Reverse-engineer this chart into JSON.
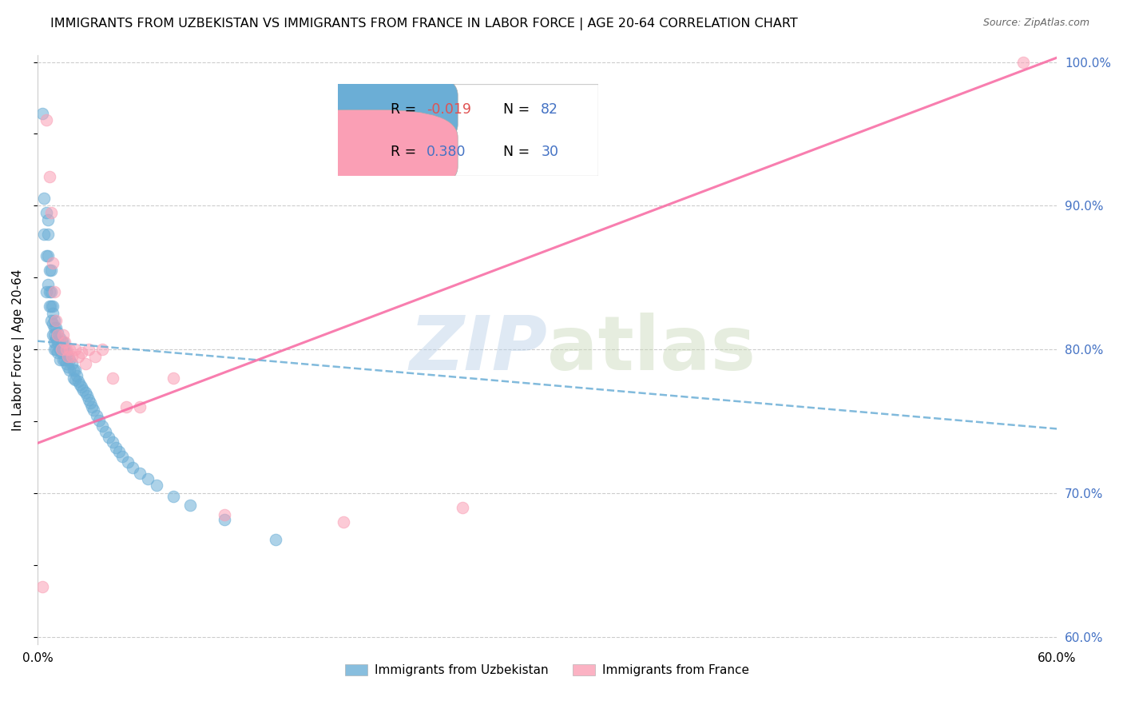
{
  "title": "IMMIGRANTS FROM UZBEKISTAN VS IMMIGRANTS FROM FRANCE IN LABOR FORCE | AGE 20-64 CORRELATION CHART",
  "source": "Source: ZipAtlas.com",
  "ylabel": "In Labor Force | Age 20-64",
  "xlim": [
    0.0,
    0.6
  ],
  "ylim": [
    0.595,
    1.005
  ],
  "yticks_right": [
    0.6,
    0.7,
    0.8,
    0.9,
    1.0
  ],
  "yticklabels_right": [
    "60.0%",
    "70.0%",
    "80.0%",
    "90.0%",
    "100.0%"
  ],
  "legend_label_uz": "Immigrants from Uzbekistan",
  "legend_label_fr": "Immigrants from France",
  "R_uz": -0.019,
  "N_uz": 82,
  "R_fr": 0.38,
  "N_fr": 30,
  "color_uz": "#6baed6",
  "color_fr": "#fa9fb5",
  "color_uz_line": "#6baed6",
  "color_fr_line": "#f768a1",
  "watermark_zip": "ZIP",
  "watermark_atlas": "atlas",
  "uz_line_x0": 0.0,
  "uz_line_x1": 0.6,
  "uz_line_y0": 0.806,
  "uz_line_y1": 0.745,
  "fr_line_x0": 0.0,
  "fr_line_x1": 0.6,
  "fr_line_y0": 0.735,
  "fr_line_y1": 1.003,
  "uz_x": [
    0.003,
    0.004,
    0.004,
    0.005,
    0.005,
    0.005,
    0.006,
    0.006,
    0.006,
    0.006,
    0.007,
    0.007,
    0.007,
    0.008,
    0.008,
    0.008,
    0.008,
    0.009,
    0.009,
    0.009,
    0.009,
    0.01,
    0.01,
    0.01,
    0.01,
    0.01,
    0.011,
    0.011,
    0.011,
    0.012,
    0.012,
    0.012,
    0.013,
    0.013,
    0.013,
    0.014,
    0.014,
    0.015,
    0.015,
    0.015,
    0.016,
    0.016,
    0.017,
    0.017,
    0.018,
    0.018,
    0.019,
    0.019,
    0.02,
    0.021,
    0.021,
    0.022,
    0.022,
    0.023,
    0.024,
    0.025,
    0.026,
    0.027,
    0.028,
    0.029,
    0.03,
    0.031,
    0.032,
    0.033,
    0.035,
    0.036,
    0.038,
    0.04,
    0.042,
    0.044,
    0.046,
    0.048,
    0.05,
    0.053,
    0.056,
    0.06,
    0.065,
    0.07,
    0.08,
    0.09,
    0.11,
    0.14
  ],
  "uz_y": [
    0.964,
    0.905,
    0.88,
    0.895,
    0.865,
    0.84,
    0.89,
    0.88,
    0.865,
    0.845,
    0.855,
    0.84,
    0.83,
    0.855,
    0.84,
    0.83,
    0.82,
    0.83,
    0.825,
    0.818,
    0.81,
    0.82,
    0.815,
    0.81,
    0.805,
    0.8,
    0.815,
    0.808,
    0.8,
    0.812,
    0.805,
    0.798,
    0.808,
    0.8,
    0.793,
    0.806,
    0.798,
    0.805,
    0.8,
    0.793,
    0.8,
    0.793,
    0.798,
    0.79,
    0.795,
    0.788,
    0.793,
    0.786,
    0.79,
    0.786,
    0.78,
    0.786,
    0.779,
    0.782,
    0.778,
    0.776,
    0.774,
    0.772,
    0.77,
    0.768,
    0.765,
    0.763,
    0.76,
    0.758,
    0.754,
    0.751,
    0.747,
    0.743,
    0.739,
    0.736,
    0.732,
    0.729,
    0.726,
    0.722,
    0.718,
    0.714,
    0.71,
    0.706,
    0.698,
    0.692,
    0.682,
    0.668
  ],
  "fr_x": [
    0.003,
    0.005,
    0.007,
    0.008,
    0.009,
    0.01,
    0.011,
    0.012,
    0.014,
    0.015,
    0.016,
    0.017,
    0.018,
    0.019,
    0.02,
    0.022,
    0.024,
    0.026,
    0.028,
    0.03,
    0.034,
    0.038,
    0.044,
    0.052,
    0.06,
    0.08,
    0.11,
    0.18,
    0.25,
    0.58
  ],
  "fr_y": [
    0.635,
    0.96,
    0.92,
    0.895,
    0.86,
    0.84,
    0.82,
    0.81,
    0.8,
    0.81,
    0.805,
    0.8,
    0.795,
    0.8,
    0.795,
    0.8,
    0.795,
    0.798,
    0.79,
    0.8,
    0.795,
    0.8,
    0.78,
    0.76,
    0.76,
    0.78,
    0.685,
    0.68,
    0.69,
    1.0
  ]
}
